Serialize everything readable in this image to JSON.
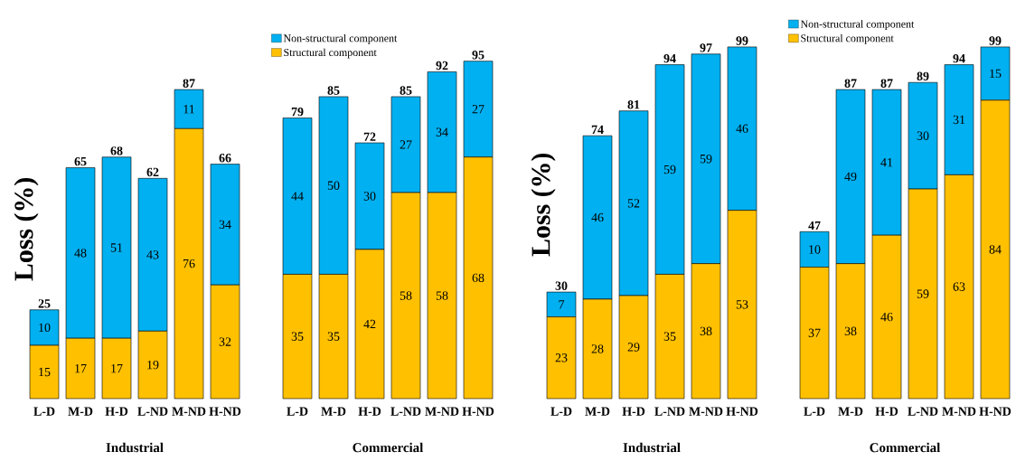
{
  "chart_data": [
    {
      "type": "bar",
      "stacked": true,
      "ylabel": "Loss (%)",
      "xlabel": "Industrial",
      "categories": [
        "L-D",
        "M-D",
        "H-D",
        "L-ND",
        "M-ND",
        "H-ND"
      ],
      "tick_labels": "x",
      "data_labels": true,
      "series": [
        {
          "color": "#ffc000",
          "values": [
            15,
            17,
            17,
            19,
            76,
            32
          ]
        },
        {
          "color": "#00b0f0",
          "values": [
            10,
            48,
            51,
            43,
            11,
            34
          ]
        }
      ],
      "totals": [
        "25",
        "65",
        "68",
        "62",
        "87",
        "66"
      ]
    },
    {
      "type": "bar",
      "stacked": true,
      "xlabel": "Commercial",
      "categories": [
        "L-D",
        "M-D",
        "H-D",
        "L-ND",
        "M-ND",
        "H-ND"
      ],
      "tick_labels": "x",
      "data_labels": true,
      "legend": "top",
      "series": [
        {
          "name": "Structural component",
          "color": "#ffc000",
          "values": [
            35,
            35,
            42,
            58,
            58,
            68
          ]
        },
        {
          "name": "Non-structural component",
          "color": "#00b0f0",
          "values": [
            44,
            50,
            30,
            27,
            34,
            27
          ]
        }
      ],
      "totals": [
        "79",
        "85",
        "72",
        "85",
        "92",
        "95"
      ]
    },
    {
      "type": "bar",
      "stacked": true,
      "ylabel": "Loss (%)",
      "xlabel": "Industrial",
      "categories": [
        "L-D",
        "M-D",
        "H-D",
        "L-ND",
        "M-ND",
        "H-ND"
      ],
      "tick_labels": "x",
      "data_labels": true,
      "series": [
        {
          "color": "#ffc000",
          "values": [
            23,
            28,
            29,
            35,
            38,
            53
          ]
        },
        {
          "color": "#00b0f0",
          "values": [
            7,
            46,
            52,
            59,
            59,
            46
          ]
        }
      ],
      "totals": [
        "30",
        "74",
        "81",
        "94",
        "97",
        "99"
      ]
    },
    {
      "type": "bar",
      "stacked": true,
      "xlabel": "Commercial",
      "categories": [
        "L-D",
        "M-D",
        "H-D",
        "L-ND",
        "M-ND",
        "H-ND"
      ],
      "tick_labels": "x",
      "data_labels": true,
      "legend": "top",
      "series": [
        {
          "name": "Structural component",
          "color": "#ffc000",
          "values": [
            37,
            38,
            46,
            59,
            63,
            84
          ]
        },
        {
          "name": "Non-structural component",
          "color": "#00b0f0",
          "values": [
            10,
            49,
            41,
            30,
            31,
            15
          ]
        }
      ],
      "totals": [
        "47",
        "87",
        "87",
        "89",
        "94",
        "99"
      ]
    }
  ]
}
